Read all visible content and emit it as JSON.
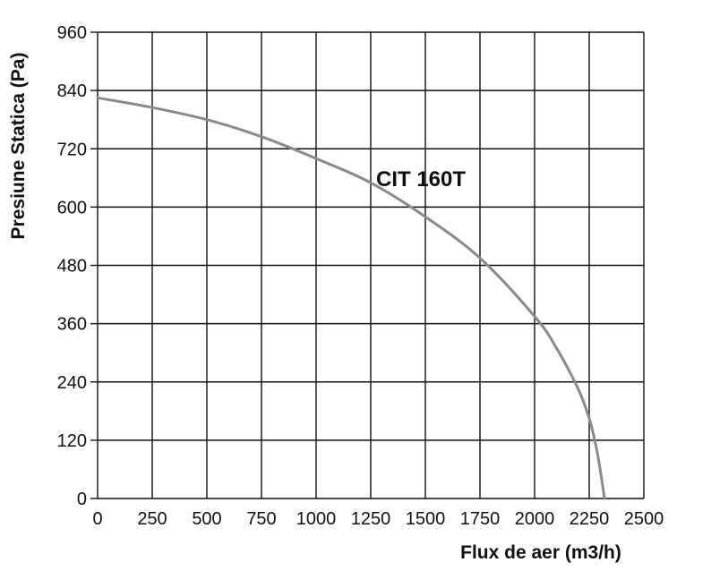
{
  "chart_data": {
    "type": "line",
    "title": "",
    "xlabel": "Flux de aer (m3/h)",
    "ylabel": "Presiune Statica (Pa)",
    "xlim": [
      0,
      2500
    ],
    "ylim": [
      0,
      960
    ],
    "x_ticks": [
      "0",
      "250",
      "500",
      "750",
      "1000",
      "1250",
      "1500",
      "1750",
      "2000",
      "2250",
      "2500"
    ],
    "y_ticks": [
      "0",
      "120",
      "240",
      "360",
      "480",
      "600",
      "720",
      "840",
      "960"
    ],
    "grid": true,
    "annotation": "CIT 160T",
    "colors": {
      "curve": "#8a8a8a",
      "grid": "#111111"
    },
    "series": [
      {
        "x": [
          0,
          250,
          500,
          750,
          1000,
          1250,
          1500,
          1750,
          2000,
          2100,
          2200,
          2250,
          2280,
          2300,
          2320
        ],
        "y": [
          825,
          805,
          780,
          745,
          700,
          650,
          580,
          495,
          375,
          310,
          225,
          165,
          110,
          60,
          0
        ]
      }
    ]
  }
}
